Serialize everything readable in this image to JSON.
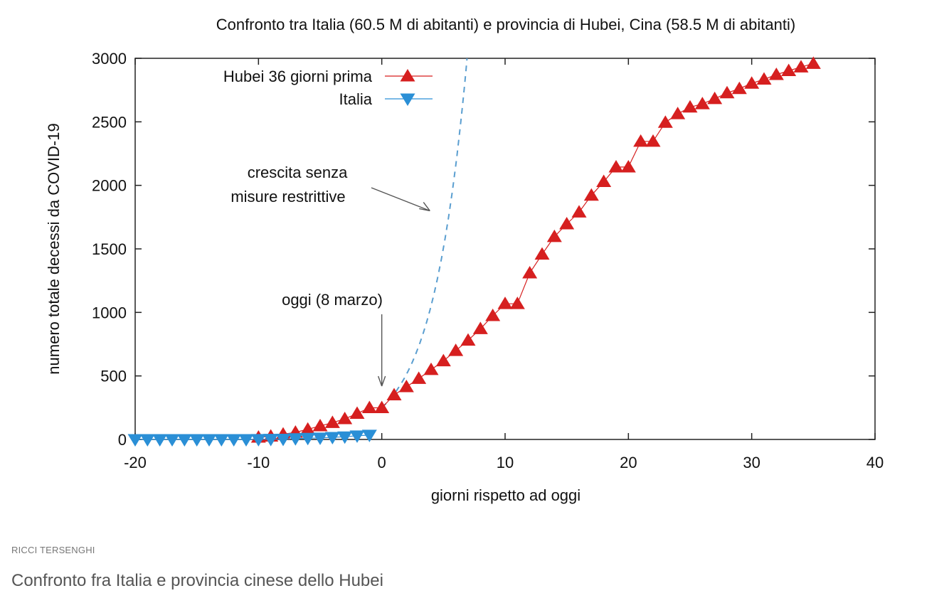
{
  "chart_data": {
    "type": "line",
    "title": "Confronto tra Italia (60.5 M di abitanti) e provincia di Hubei, Cina (58.5 M di abitanti)",
    "xlabel": "giorni rispetto ad oggi",
    "ylabel": "numero totale decessi da COVID-19",
    "xlim": [
      -20,
      40
    ],
    "ylim": [
      0,
      3000
    ],
    "xticks": [
      -20,
      -10,
      0,
      10,
      20,
      30,
      40
    ],
    "yticks": [
      0,
      500,
      1000,
      1500,
      2000,
      2500,
      3000
    ],
    "grid": false,
    "legend_position": "top-left",
    "series": [
      {
        "name": "Hubei 36 giorni prima",
        "color": "#d61f1f",
        "marker": "triangle-up",
        "x": [
          -10,
          -9,
          -8,
          -7,
          -6,
          -5,
          -4,
          -3,
          -2,
          -1,
          0,
          1,
          2,
          3,
          4,
          5,
          6,
          7,
          8,
          9,
          10,
          11,
          12,
          13,
          14,
          15,
          16,
          17,
          18,
          19,
          20,
          21,
          22,
          23,
          24,
          25,
          26,
          27,
          28,
          29,
          30,
          31,
          32,
          33,
          34,
          35
        ],
        "y": [
          17,
          25,
          41,
          56,
          80,
          106,
          132,
          162,
          204,
          249,
          249,
          350,
          414,
          479,
          549,
          618,
          699,
          780,
          871,
          974,
          1068,
          1068,
          1310,
          1457,
          1596,
          1696,
          1789,
          1921,
          2029,
          2144,
          2144,
          2346,
          2346,
          2495,
          2563,
          2615,
          2641,
          2682,
          2727,
          2761,
          2803,
          2835,
          2871,
          2902,
          2931,
          2959
        ]
      },
      {
        "name": "Italia",
        "color": "#2a8fd6",
        "marker": "triangle-down",
        "x": [
          -20,
          -19,
          -18,
          -17,
          -16,
          -15,
          -14,
          -13,
          -12,
          -11,
          -10,
          -9,
          -8,
          -7,
          -6,
          -5,
          -4,
          -3,
          -2,
          -1
        ],
        "y": [
          0,
          0,
          0,
          0,
          0,
          0,
          0,
          0,
          0,
          0,
          1,
          2,
          3,
          7,
          10,
          12,
          17,
          21,
          29,
          34
        ]
      }
    ],
    "curves": [
      {
        "description_label": "crescita senza misure restrittive",
        "style": "dashed",
        "color": "#5a9ed0",
        "x": [
          0,
          1,
          2,
          3,
          4,
          5,
          6,
          7
        ],
        "y": [
          250,
          358,
          513,
          735,
          1053,
          1508,
          2159,
          3092
        ]
      }
    ],
    "annotations": [
      {
        "text_lines": [
          "crescita senza",
          "misure restrittive"
        ],
        "arrow_to": [
          3.9,
          1800
        ]
      },
      {
        "text_lines": [
          "oggi (8 marzo)"
        ],
        "arrow_to": [
          0,
          330
        ]
      }
    ]
  },
  "footer": {
    "credit": "RICCI TERSENGHI",
    "caption": "Confronto fra Italia e provincia cinese dello Hubei"
  }
}
